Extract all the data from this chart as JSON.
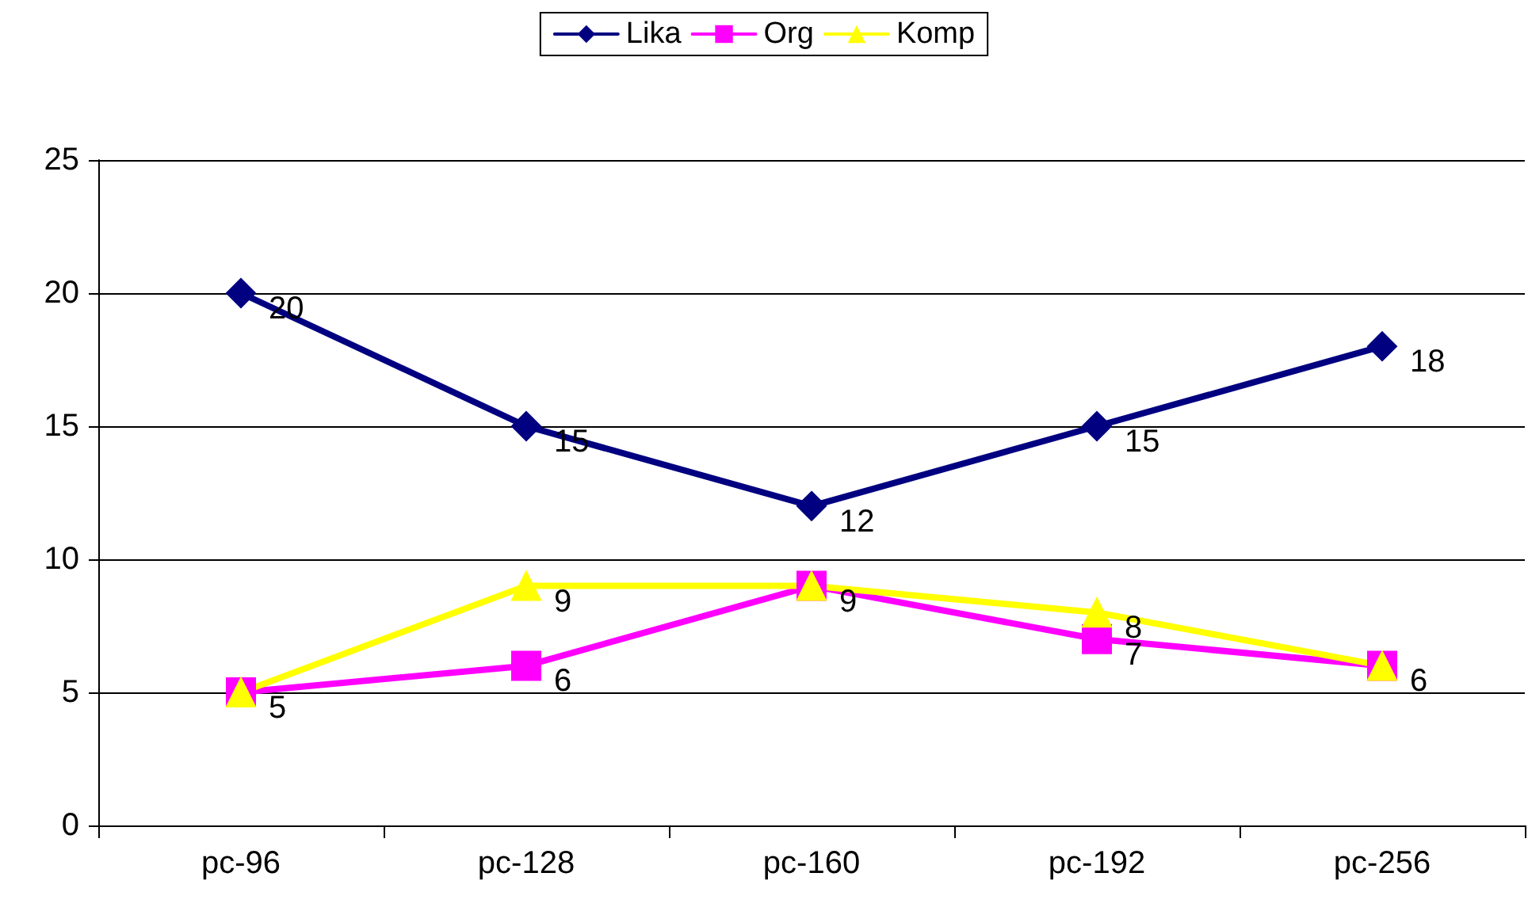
{
  "chart_data": {
    "type": "line",
    "categories": [
      "pc-96",
      "pc-128",
      "pc-160",
      "pc-192",
      "pc-256"
    ],
    "series": [
      {
        "name": "Lika",
        "color": "#000080",
        "marker": "diamond",
        "values": [
          20,
          15,
          12,
          15,
          18
        ]
      },
      {
        "name": "Org",
        "color": "#ff00ff",
        "marker": "square",
        "values": [
          5,
          6,
          9,
          7,
          6
        ]
      },
      {
        "name": "Komp",
        "color": "#ffff00",
        "marker": "triangle",
        "values": [
          5,
          9,
          9,
          8,
          6
        ],
        "value_labels": [
          null,
          "9",
          null,
          "8",
          null
        ]
      }
    ],
    "ylim": [
      0,
      25
    ],
    "yticks": [
      0,
      5,
      10,
      15,
      20,
      25
    ],
    "grid": "y",
    "legend": "top",
    "data_labels": true
  }
}
